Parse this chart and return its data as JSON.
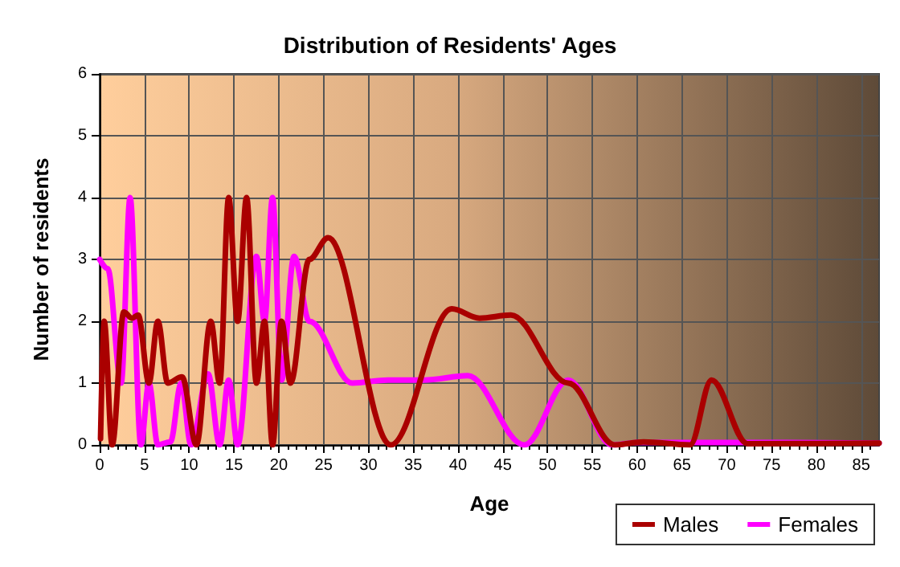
{
  "chart_data": {
    "type": "line",
    "title": "Distribution of Residents' Ages",
    "xlabel": "Age",
    "ylabel": "Number of residents",
    "xlim": [
      0,
      87
    ],
    "xticks": [
      0,
      5,
      10,
      15,
      20,
      25,
      30,
      35,
      40,
      45,
      50,
      55,
      60,
      65,
      70,
      75,
      80,
      85
    ],
    "ylim": [
      0,
      6
    ],
    "yticks": [
      0,
      1,
      2,
      3,
      4,
      5,
      6
    ],
    "grid": true,
    "legend": "bottom right",
    "marker": "none",
    "line_style": "solid",
    "series": [
      {
        "name": "Males",
        "color": "#aa0000",
        "x": [
          0.1,
          0.5,
          1.4,
          2.7,
          3.6,
          4.3,
          5.5,
          6.5,
          7.6,
          9.2,
          10.8,
          12.4,
          13.4,
          14.4,
          15.4,
          16.4,
          17.5,
          18.4,
          19.3,
          20.3,
          21.3,
          23.4,
          25.5,
          32.5,
          39.3,
          42.4,
          45.9,
          52.3,
          57.5,
          60.7,
          65.9,
          68.3,
          72.3,
          87
        ],
        "values": [
          0.1,
          2,
          0,
          2.15,
          2.05,
          2.1,
          1,
          2,
          1,
          1.1,
          0,
          2,
          1,
          4,
          2,
          4,
          1,
          2,
          0,
          2,
          1,
          3,
          3.35,
          0,
          2.2,
          2.05,
          2.1,
          1,
          0,
          0.05,
          0,
          1.05,
          0.02,
          0.03
        ]
      },
      {
        "name": "Females",
        "color": "#ff00ff",
        "x": [
          0,
          0.9,
          2.4,
          3.4,
          4.6,
          5.5,
          6.5,
          7.9,
          9.1,
          10.2,
          12.1,
          13.4,
          14.4,
          15.4,
          17.5,
          18.4,
          19.3,
          20.3,
          21.7,
          23.4,
          28.2,
          32.2,
          36.2,
          41.1,
          47.4,
          52.3,
          57.2,
          60,
          70,
          87
        ],
        "values": [
          3,
          2.85,
          1,
          4,
          0,
          1,
          0,
          0.05,
          1,
          0,
          1.15,
          0,
          1.05,
          0,
          3.05,
          2,
          4,
          1.05,
          3.05,
          2,
          1,
          1.05,
          1.05,
          1.12,
          0,
          1.05,
          0,
          0.04,
          0.04,
          0.03
        ]
      }
    ]
  }
}
